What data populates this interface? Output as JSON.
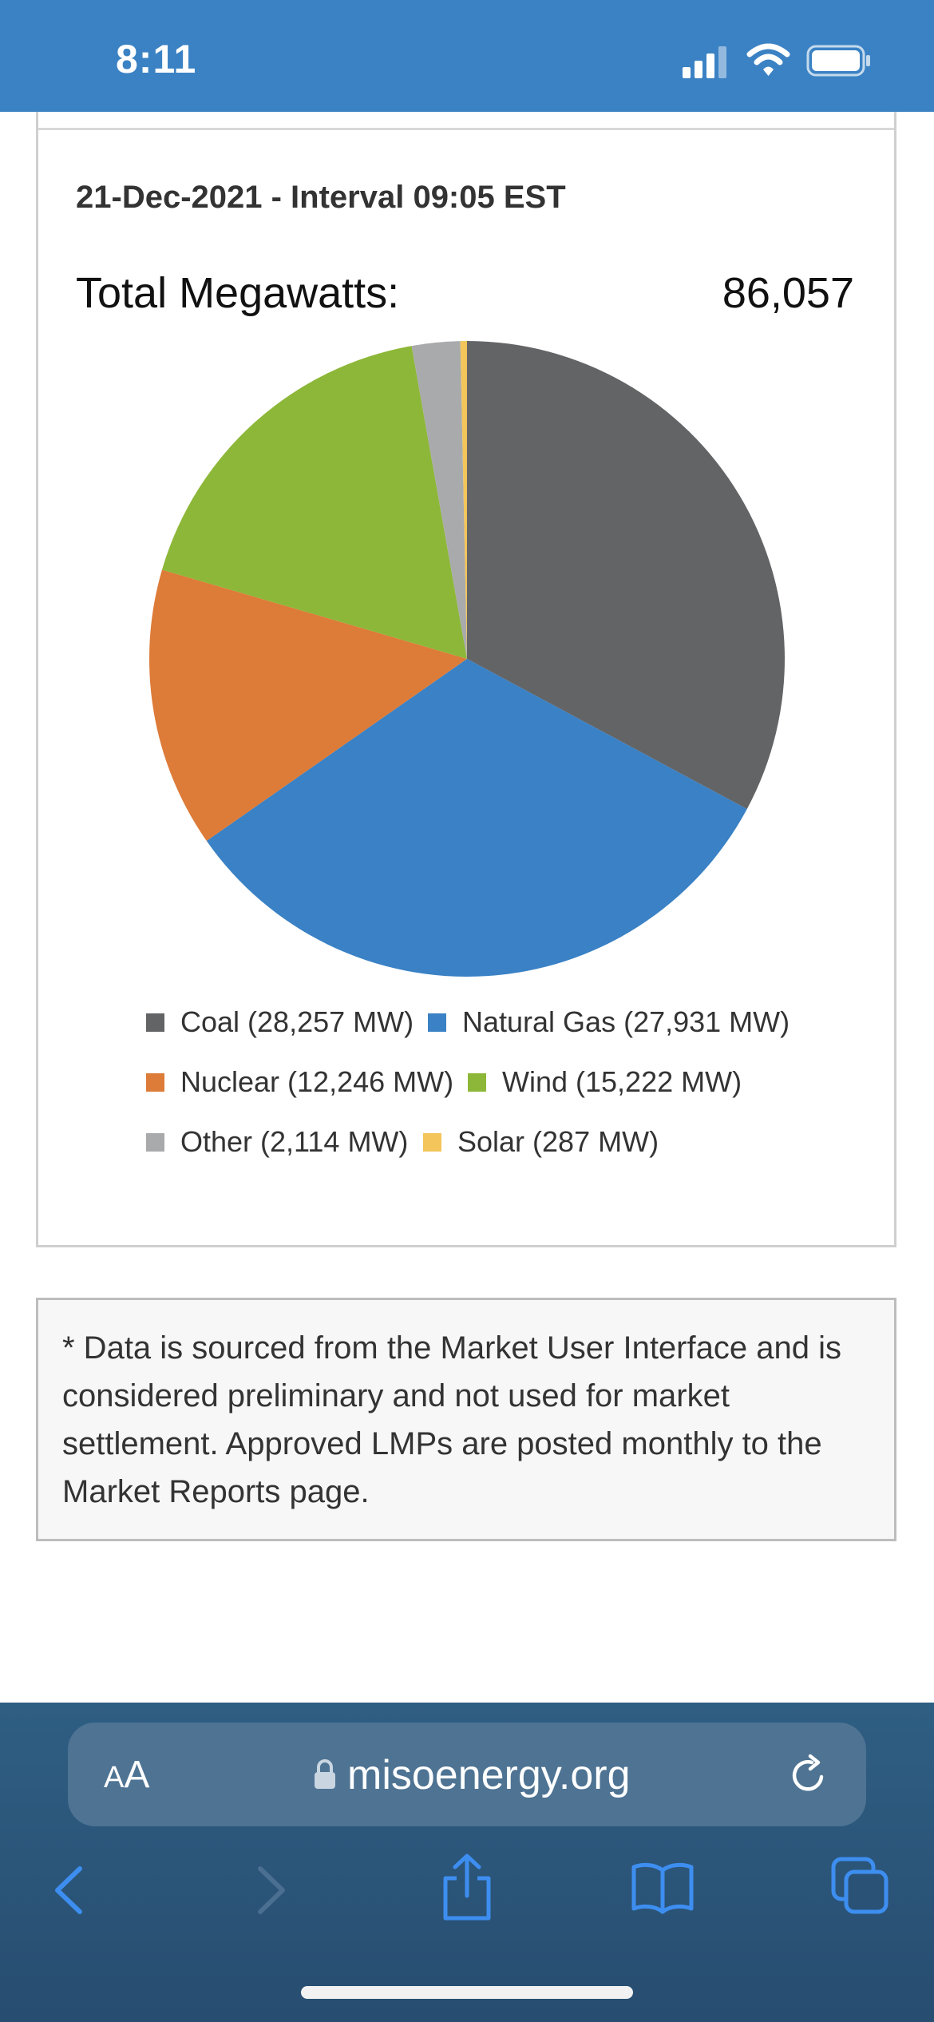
{
  "status_bar": {
    "time": "8:11",
    "signal_icon": "cellular-signal-icon",
    "wifi_icon": "wifi-icon",
    "battery_icon": "battery-icon"
  },
  "card": {
    "interval_title": "21-Dec-2021 - Interval 09:05 EST",
    "total_label": "Total Megawatts:",
    "total_value": "86,057"
  },
  "chart_data": {
    "type": "pie",
    "title": "",
    "slices": [
      {
        "label": "Coal (28,257 MW)",
        "name": "Coal",
        "value": 28257,
        "color": "#636466"
      },
      {
        "label": "Natural Gas (27,931 MW)",
        "name": "Natural Gas",
        "value": 27931,
        "color": "#3a81c5"
      },
      {
        "label": "Nuclear (12,246 MW)",
        "name": "Nuclear",
        "value": 12246,
        "color": "#dd7b38"
      },
      {
        "label": "Wind (15,222 MW)",
        "name": "Wind",
        "value": 15222,
        "color": "#8db738"
      },
      {
        "label": "Other (2,114 MW)",
        "name": "Other",
        "value": 2114,
        "color": "#a9aaac"
      },
      {
        "label": "Solar (287 MW)",
        "name": "Solar",
        "value": 287,
        "color": "#f3c55a"
      }
    ],
    "legend_position": "bottom"
  },
  "note": {
    "text": "* Data is sourced from the Market User Interface and is considered preliminary and not used for market settlement. Approved LMPs are posted monthly to the Market Reports page."
  },
  "browser": {
    "aa_label_big": "A",
    "aa_label_small": "A",
    "url": "misoenergy.org",
    "lock_icon": "lock-icon",
    "reload_icon": "reload-icon",
    "back_icon": "chevron-left-icon",
    "forward_icon": "chevron-right-icon",
    "share_icon": "share-icon",
    "bookmarks_icon": "book-icon",
    "tabs_icon": "tabs-icon"
  }
}
